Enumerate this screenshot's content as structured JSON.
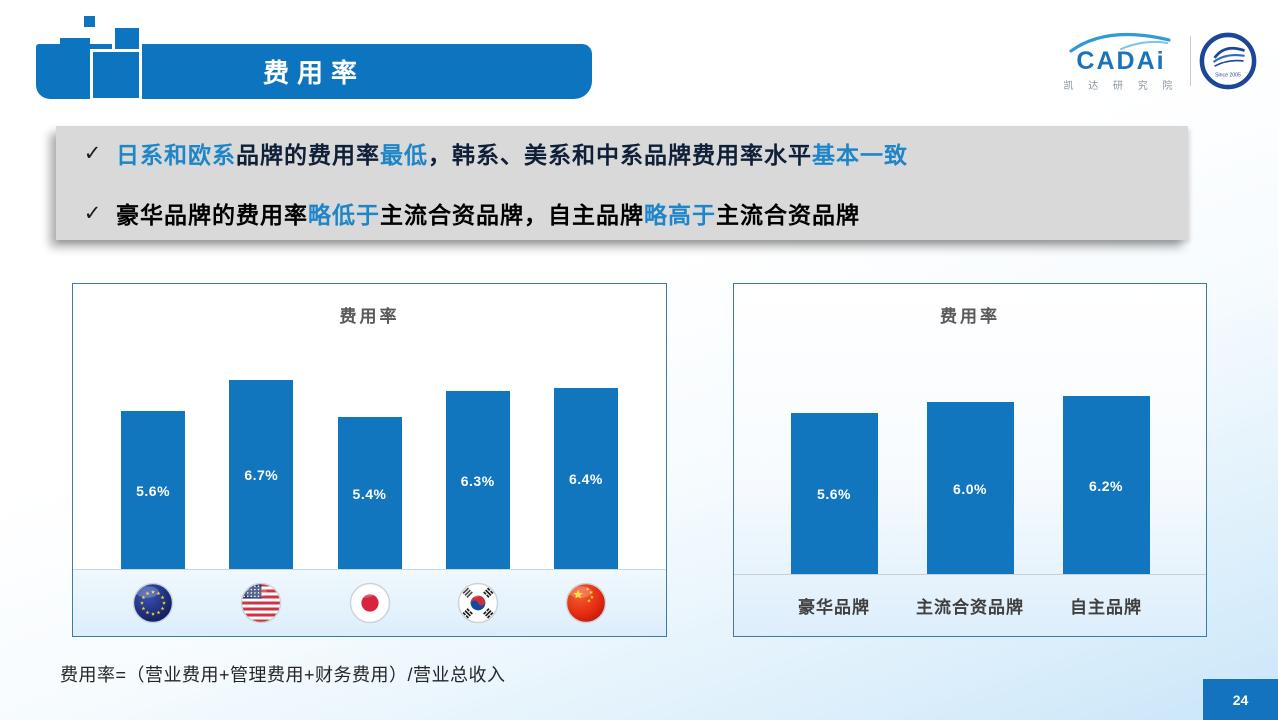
{
  "header": {
    "title": "费用率"
  },
  "logo": {
    "brand": "CADAi",
    "brand_cn": "凯 达 研 究 院",
    "badge_since": "Since 2005"
  },
  "colors": {
    "accent_blue": "#0d74c0",
    "bar_blue": "#1176be",
    "highlight_text": "#1e86c8",
    "callout_bg": "#d9d9d9",
    "chart_title_gray": "#595959",
    "page_bottom_blue": "#c9e6f9"
  },
  "bullets": [
    {
      "marker": "✓",
      "base_color": "#0f1f38",
      "segments": [
        {
          "text": "日系和欧系",
          "highlight": true
        },
        {
          "text": "品牌的费用率",
          "highlight": false
        },
        {
          "text": "最低",
          "highlight": true
        },
        {
          "text": "，韩系、美系和中系品牌费用率水平",
          "highlight": false
        },
        {
          "text": "基本一致",
          "highlight": true
        }
      ]
    },
    {
      "marker": "✓",
      "base_color": "#000000",
      "segments": [
        {
          "text": "豪华品牌的费用率",
          "highlight": false
        },
        {
          "text": "略低于",
          "highlight": true
        },
        {
          "text": "主流合资品牌，自主品牌",
          "highlight": false
        },
        {
          "text": "略高于",
          "highlight": true
        },
        {
          "text": "主流合资品牌",
          "highlight": false
        }
      ]
    }
  ],
  "chart_data": [
    {
      "type": "bar",
      "title": "费用率",
      "categories": [
        "eu",
        "usa",
        "japan",
        "south-korea",
        "china"
      ],
      "category_display": "flag-icons",
      "values": [
        5.6,
        6.7,
        5.4,
        6.3,
        6.4
      ],
      "value_labels": [
        "5.6%",
        "6.7%",
        "5.4%",
        "6.3%",
        "6.4%"
      ],
      "ylim": [
        0,
        10
      ],
      "grid": false,
      "bar_color": "#1176be",
      "label_color": "#ffffff"
    },
    {
      "type": "bar",
      "title": "费用率",
      "categories": [
        "豪华品牌",
        "主流合资品牌",
        "自主品牌"
      ],
      "values": [
        5.6,
        6.0,
        6.2
      ],
      "value_labels": [
        "5.6%",
        "6.0%",
        "6.2%"
      ],
      "ylim": [
        0,
        10
      ],
      "grid": false,
      "bar_color": "#1176be",
      "label_color": "#ffffff"
    }
  ],
  "footnote": "费用率=（营业费用+管理费用+财务费用）/营业总收入",
  "page_number": "24"
}
